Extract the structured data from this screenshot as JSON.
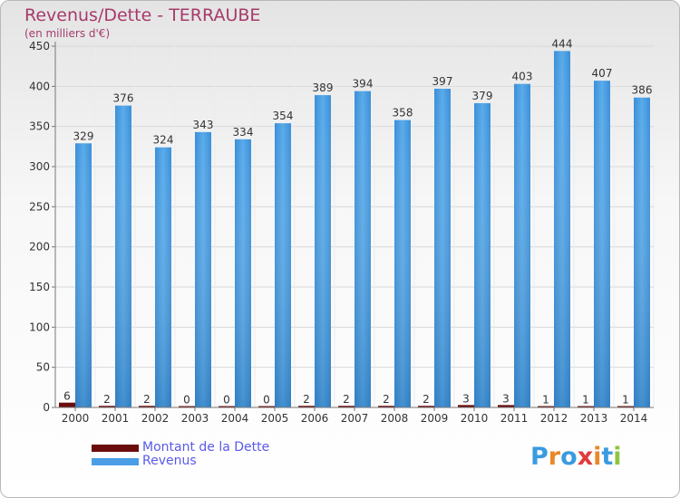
{
  "chart_data": {
    "type": "bar",
    "title": "Revenus/Dette - TERRAUBE",
    "subtitle": "(en milliers d'€)",
    "categories": [
      "2000",
      "2001",
      "2002",
      "2003",
      "2004",
      "2005",
      "2006",
      "2007",
      "2008",
      "2009",
      "2010",
      "2011",
      "2012",
      "2013",
      "2014"
    ],
    "series": [
      {
        "name": "Montant de la Dette",
        "color": "#6b0c0c",
        "values": [
          6,
          2,
          2,
          0,
          0,
          0,
          2,
          2,
          2,
          2,
          3,
          3,
          1,
          1,
          1
        ]
      },
      {
        "name": "Revenus",
        "color": "#3d94de",
        "values": [
          329,
          376,
          324,
          343,
          334,
          354,
          389,
          394,
          358,
          397,
          379,
          403,
          444,
          407,
          386
        ]
      }
    ],
    "ylim": [
      0,
      450
    ],
    "yticks": [
      0,
      50,
      100,
      150,
      200,
      250,
      300,
      350,
      400,
      450
    ],
    "xlabel": "",
    "ylabel": "",
    "grid": true,
    "legend_position": "bottom-left"
  },
  "legend": {
    "items": [
      {
        "label": "Montant de la Dette",
        "color": "#6b0c0c"
      },
      {
        "label": "Revenus",
        "color": "#4a9ee6"
      }
    ]
  },
  "logo": {
    "letters": [
      "P",
      "r",
      "o",
      "x",
      "i",
      "t",
      "i"
    ],
    "colors": [
      "#3a9be0",
      "#e9892a",
      "#3a9be0",
      "#e23b3b",
      "#e9892a",
      "#3a9be0",
      "#8cc63e"
    ]
  }
}
